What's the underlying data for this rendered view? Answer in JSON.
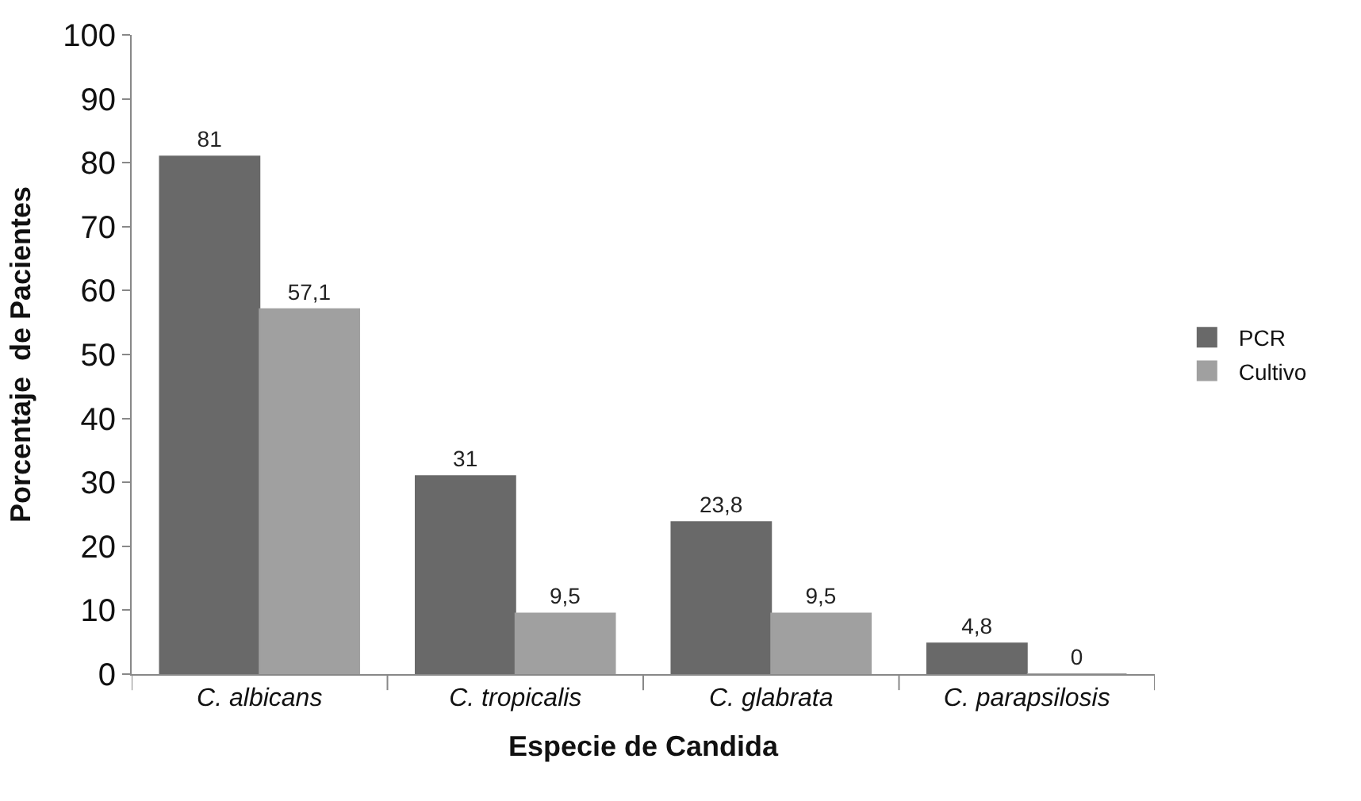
{
  "chart_data": {
    "type": "bar",
    "categories": [
      "C. albicans",
      "C. tropicalis",
      "C. glabrata",
      "C. parapsilosis"
    ],
    "series": [
      {
        "name": "PCR",
        "color": "#696969",
        "values": [
          81,
          31,
          23.8,
          4.8
        ],
        "value_labels": [
          "81",
          "31",
          "23,8",
          "4,8"
        ]
      },
      {
        "name": "Cultivo",
        "color": "#a0a0a0",
        "values": [
          57.1,
          9.5,
          9.5,
          0
        ],
        "value_labels": [
          "57,1",
          "9,5",
          "9,5",
          "0"
        ]
      }
    ],
    "xlabel": "Especie de Candida",
    "ylabel": "Porcentaje  de Pacientes",
    "ylim": [
      0,
      100
    ],
    "yticks": [
      0,
      10,
      20,
      30,
      40,
      50,
      60,
      70,
      80,
      90,
      100
    ],
    "legend": "right"
  }
}
